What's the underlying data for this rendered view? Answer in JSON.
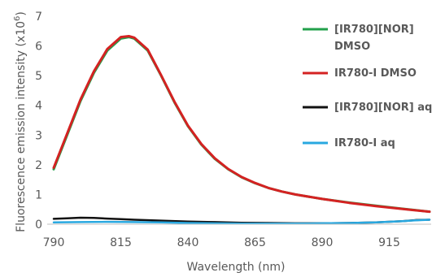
{
  "chart_data": {
    "type": "line",
    "xlabel": "Wavelength (nm)",
    "ylabel_main": "Fluorescence emission intensity (x10",
    "ylabel_exp": "6",
    "ylabel_close": ")",
    "xlim": [
      790,
      930
    ],
    "ylim": [
      0,
      7
    ],
    "xticks": [
      790,
      815,
      840,
      865,
      890,
      915
    ],
    "yticks": [
      0,
      1,
      2,
      3,
      4,
      5,
      6,
      7
    ],
    "grid": false,
    "legend_position": "right",
    "series": [
      {
        "name": "[IR780][NOR] DMSO",
        "legend_lines": [
          "[IR780][NOR]",
          "DMSO"
        ],
        "color": "#22a04b",
        "x": [
          790,
          795,
          800,
          805,
          810,
          815,
          818,
          820,
          825,
          830,
          835,
          840,
          845,
          850,
          855,
          860,
          865,
          870,
          875,
          880,
          890,
          900,
          910,
          920,
          930
        ],
        "y": [
          1.85,
          3.0,
          4.15,
          5.1,
          5.85,
          6.25,
          6.3,
          6.25,
          5.85,
          5.0,
          4.1,
          3.3,
          2.68,
          2.2,
          1.85,
          1.58,
          1.38,
          1.22,
          1.1,
          1.0,
          0.85,
          0.73,
          0.62,
          0.52,
          0.42
        ]
      },
      {
        "name": "IR780-I DMSO",
        "legend_lines": [
          "IR780-I DMSO"
        ],
        "color": "#d42222",
        "x": [
          790,
          795,
          800,
          805,
          810,
          815,
          818,
          820,
          825,
          830,
          835,
          840,
          845,
          850,
          855,
          860,
          865,
          870,
          875,
          880,
          890,
          900,
          910,
          920,
          930
        ],
        "y": [
          1.9,
          3.05,
          4.2,
          5.15,
          5.9,
          6.3,
          6.33,
          6.28,
          5.88,
          5.02,
          4.12,
          3.32,
          2.7,
          2.22,
          1.86,
          1.59,
          1.39,
          1.22,
          1.1,
          1.0,
          0.85,
          0.72,
          0.61,
          0.51,
          0.42
        ]
      },
      {
        "name": "[IR780][NOR] aq",
        "legend_lines": [
          "[IR780][NOR] aq"
        ],
        "color": "#111111",
        "x": [
          790,
          795,
          800,
          805,
          810,
          815,
          820,
          830,
          840,
          850,
          860,
          870,
          880,
          890,
          900,
          910,
          920,
          925,
          930
        ],
        "y": [
          0.18,
          0.2,
          0.22,
          0.21,
          0.19,
          0.17,
          0.15,
          0.12,
          0.09,
          0.07,
          0.05,
          0.04,
          0.03,
          0.03,
          0.04,
          0.06,
          0.1,
          0.14,
          0.15
        ]
      },
      {
        "name": "IR780-I aq",
        "legend_lines": [
          "IR780-I aq"
        ],
        "color": "#29a8e0",
        "x": [
          790,
          800,
          810,
          820,
          830,
          840,
          850,
          860,
          870,
          880,
          890,
          900,
          910,
          920,
          925,
          930
        ],
        "y": [
          0.06,
          0.07,
          0.08,
          0.07,
          0.06,
          0.04,
          0.03,
          0.02,
          0.02,
          0.02,
          0.03,
          0.04,
          0.06,
          0.1,
          0.13,
          0.15
        ]
      }
    ]
  }
}
